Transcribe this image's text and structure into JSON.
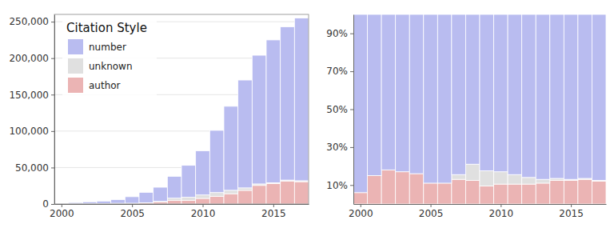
{
  "chart_data": [
    {
      "type": "bar",
      "stacked": true,
      "grid": true,
      "legend": "upper left",
      "legend_title": "Citation Style",
      "x": [
        2000,
        2001,
        2002,
        2003,
        2004,
        2005,
        2006,
        2007,
        2008,
        2009,
        2010,
        2011,
        2012,
        2013,
        2014,
        2015,
        2016,
        2017
      ],
      "xlim": [
        1999.5,
        2017.5
      ],
      "xticks": [
        2000,
        2005,
        2010,
        2015
      ],
      "ylim": [
        0,
        260000
      ],
      "yticks": [
        0,
        {
          "value": 50000,
          "label": "50,000"
        },
        {
          "value": 100000,
          "label": "100,000"
        },
        {
          "value": 150000,
          "label": "150,000"
        },
        {
          "value": 200000,
          "label": "200,000"
        },
        {
          "value": 250000,
          "label": "250,000"
        }
      ],
      "series": [
        {
          "name": "author",
          "color": "#ebb4b4",
          "values": [
            100,
            300,
            500,
            700,
            1000,
            1100,
            1800,
            3000,
            4800,
            5000,
            7700,
            10600,
            14100,
            18700,
            25500,
            28100,
            31600,
            30600
          ]
        },
        {
          "name": "unknown",
          "color": "#e0e0e0",
          "values": [
            0,
            0,
            0,
            0,
            0,
            0,
            0,
            600,
            3200,
            4200,
            4700,
            5100,
            4700,
            3400,
            2000,
            1100,
            1200,
            1300
          ]
        },
        {
          "name": "number",
          "color": "#b9bcf0",
          "values": [
            900,
            1700,
            2500,
            3300,
            5000,
            8900,
            14200,
            19400,
            30000,
            43800,
            60600,
            85300,
            115200,
            147900,
            176500,
            195800,
            210200,
            223100
          ]
        }
      ]
    },
    {
      "type": "bar",
      "stacked": true,
      "grid": false,
      "x": [
        2000,
        2001,
        2002,
        2003,
        2004,
        2005,
        2006,
        2007,
        2008,
        2009,
        2010,
        2011,
        2012,
        2013,
        2014,
        2015,
        2016,
        2017
      ],
      "xlim": [
        1999.5,
        2017.5
      ],
      "xticks": [
        2000,
        2005,
        2010,
        2015
      ],
      "ylim": [
        0,
        100
      ],
      "yticks": [
        {
          "value": 10,
          "label": "10%"
        },
        {
          "value": 30,
          "label": "30%"
        },
        {
          "value": 50,
          "label": "50%"
        },
        {
          "value": 70,
          "label": "70%"
        },
        {
          "value": 90,
          "label": "90%"
        }
      ],
      "series": [
        {
          "name": "author",
          "color": "#ebb4b4",
          "values": [
            6,
            15,
            18,
            17,
            16,
            11,
            11,
            13,
            12.5,
            9.5,
            10.5,
            10.5,
            10.5,
            11,
            12.5,
            12.5,
            13,
            12
          ]
        },
        {
          "name": "unknown",
          "color": "#e0e0e0",
          "values": [
            0,
            0,
            0,
            0,
            0,
            0,
            0,
            2.5,
            8.5,
            8,
            6.5,
            5,
            3.5,
            2,
            1,
            0.5,
            0.5,
            0.5
          ]
        },
        {
          "name": "number",
          "color": "#b9bcf0",
          "values": [
            94,
            85,
            82,
            83,
            84,
            89,
            89,
            84.5,
            79,
            82.5,
            83,
            84.5,
            86,
            87,
            86.5,
            87,
            86.5,
            87.5
          ]
        }
      ]
    }
  ]
}
